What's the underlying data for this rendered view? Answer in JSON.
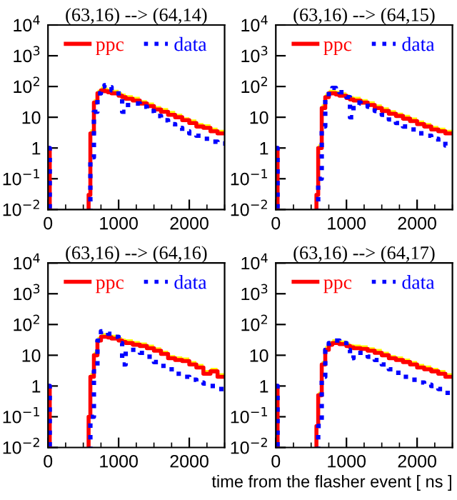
{
  "chart_data": [
    {
      "type": "step",
      "title": "(63,16) --> (64,14)",
      "x": [
        0,
        25,
        575,
        600,
        650,
        700,
        750,
        800,
        850,
        900,
        1000,
        1050,
        1100,
        1200,
        1300,
        1400,
        1500,
        1600,
        1700,
        1800,
        1900,
        2000,
        2100,
        2200,
        2300,
        2400,
        2500
      ],
      "log": "y",
      "xlim": [
        0,
        2500
      ],
      "ylim": [
        0.01,
        10000
      ],
      "xticks": [
        0,
        1000,
        2000
      ],
      "yticks": [
        {
          "value": 0.01,
          "label": "10$^{−2}$"
        },
        {
          "value": 0.1,
          "label": "10$^{−1}$"
        },
        1,
        10,
        {
          "value": 100,
          "label": "10$^{2}$"
        },
        {
          "value": 1000,
          "label": "10$^{3}$"
        },
        {
          "value": 10000,
          "label": "10$^{4}$"
        }
      ],
      "legend": "top",
      "grid": false,
      "series": [
        {
          "name": "ppc",
          "color": "#ff0000",
          "line_style": "solid",
          "values": [
            1,
            null,
            0.03,
            3,
            30,
            60,
            75,
            70,
            65,
            60,
            50,
            45,
            40,
            35,
            28,
            23,
            18,
            15,
            12,
            10,
            8,
            6.5,
            5,
            4.5,
            3.5,
            3,
            3
          ],
          "lower": [
            null,
            null,
            0.03,
            3,
            30,
            60,
            75,
            70,
            65,
            60,
            50,
            45,
            40,
            35,
            28,
            23,
            18,
            15,
            12,
            10,
            8,
            6.5,
            5,
            4.5,
            3.5,
            3,
            3
          ],
          "upper": [
            null,
            null,
            0.04,
            4,
            39,
            78,
            98,
            91,
            85,
            78,
            65,
            59,
            52,
            46,
            36,
            30,
            23,
            20,
            16,
            13,
            10,
            8.5,
            6.5,
            5.9,
            4.6,
            3.9,
            3.9
          ]
        },
        {
          "name": "data",
          "color": "#0000ff",
          "line_style": "dotted",
          "values": [
            1,
            null,
            null,
            0.5,
            15,
            60,
            100,
            110,
            95,
            75,
            50,
            15,
            25,
            28,
            22,
            16,
            11,
            8,
            6,
            4.5,
            3.5,
            3,
            2.5,
            2,
            1.6,
            1.4,
            1.4
          ]
        }
      ]
    },
    {
      "type": "step",
      "title": "(63,16) --> (64,15)",
      "x": [
        0,
        25,
        575,
        600,
        650,
        700,
        750,
        800,
        850,
        900,
        1000,
        1050,
        1100,
        1200,
        1300,
        1400,
        1500,
        1600,
        1700,
        1800,
        1900,
        2000,
        2100,
        2200,
        2300,
        2400,
        2500
      ],
      "log": "y",
      "xlim": [
        0,
        2500
      ],
      "ylim": [
        0.01,
        10000
      ],
      "xticks": [
        0,
        1000,
        2000
      ],
      "yticks": [
        {
          "value": 0.01,
          "label": "10$^{−2}$"
        },
        {
          "value": 0.1,
          "label": "10$^{−1}$"
        },
        1,
        10,
        {
          "value": 100,
          "label": "10$^{2}$"
        },
        {
          "value": 1000,
          "label": "10$^{3}$"
        },
        {
          "value": 10000,
          "label": "10$^{4}$"
        }
      ],
      "legend": "top",
      "grid": false,
      "series": [
        {
          "name": "ppc",
          "color": "#ff0000",
          "line_style": "solid",
          "values": [
            1,
            null,
            0.03,
            1,
            20,
            45,
            60,
            60,
            55,
            50,
            42,
            38,
            35,
            30,
            25,
            20,
            16,
            13,
            11,
            9,
            7.5,
            6,
            5,
            4,
            3.5,
            3,
            3
          ],
          "lower": [
            null,
            null,
            0.03,
            1,
            20,
            45,
            60,
            60,
            55,
            50,
            42,
            38,
            35,
            30,
            25,
            20,
            16,
            13,
            11,
            9,
            7.5,
            6,
            5,
            4,
            3.5,
            3,
            3
          ],
          "upper": [
            null,
            null,
            0.04,
            1.3,
            26,
            59,
            78,
            78,
            72,
            65,
            55,
            49,
            46,
            39,
            33,
            26,
            21,
            17,
            14,
            12,
            9.8,
            7.8,
            6.5,
            5.2,
            4.6,
            3.9,
            3.9
          ]
        },
        {
          "name": "data",
          "color": "#0000ff",
          "line_style": "dotted",
          "values": [
            1,
            null,
            null,
            0.1,
            5,
            40,
            80,
            90,
            80,
            65,
            45,
            10,
            30,
            28,
            22,
            16,
            12,
            8.5,
            6.5,
            5,
            4,
            3,
            2.5,
            2,
            1.6,
            1.2,
            1.2
          ]
        }
      ]
    },
    {
      "type": "step",
      "title": "(63,16) --> (64,16)",
      "x": [
        0,
        25,
        575,
        600,
        650,
        700,
        750,
        800,
        850,
        900,
        1000,
        1050,
        1100,
        1200,
        1300,
        1400,
        1500,
        1600,
        1700,
        1800,
        1900,
        2000,
        2100,
        2200,
        2300,
        2400,
        2500
      ],
      "log": "y",
      "xlim": [
        0,
        2500
      ],
      "ylim": [
        0.01,
        10000
      ],
      "xticks": [
        0,
        1000,
        2000
      ],
      "yticks": [
        {
          "value": 0.01,
          "label": "10$^{−2}$"
        },
        {
          "value": 0.1,
          "label": "10$^{−1}$"
        },
        1,
        10,
        {
          "value": 100,
          "label": "10$^{2}$"
        },
        {
          "value": 1000,
          "label": "10$^{3}$"
        },
        {
          "value": 10000,
          "label": "10$^{4}$"
        }
      ],
      "legend": "top",
      "grid": false,
      "series": [
        {
          "name": "ppc",
          "color": "#ff0000",
          "line_style": "solid",
          "values": [
            1,
            null,
            0.1,
            2,
            10,
            30,
            40,
            40,
            38,
            35,
            30,
            27,
            25,
            22,
            20,
            17,
            14,
            11,
            8,
            7,
            6.5,
            5,
            4,
            2.5,
            3,
            2,
            2
          ],
          "lower": [
            null,
            null,
            0.1,
            2,
            10,
            30,
            40,
            40,
            38,
            35,
            30,
            27,
            25,
            22,
            20,
            17,
            14,
            11,
            8,
            7,
            6.5,
            5,
            4,
            2.5,
            3,
            2,
            2
          ],
          "upper": [
            null,
            null,
            0.13,
            2.6,
            13,
            39,
            52,
            52,
            49,
            46,
            39,
            35,
            33,
            29,
            26,
            22,
            18,
            14,
            10,
            9.1,
            8.5,
            6.5,
            5.2,
            3.3,
            3.9,
            2.6,
            2.6
          ]
        },
        {
          "name": "data",
          "color": "#0000ff",
          "line_style": "dotted",
          "values": [
            1,
            null,
            null,
            0.1,
            3,
            30,
            60,
            60,
            50,
            40,
            25,
            5,
            15,
            15,
            12,
            9,
            6,
            4.5,
            3.5,
            2.5,
            2,
            1.6,
            1.3,
            1.2,
            1,
            0.8,
            0.8
          ]
        }
      ]
    },
    {
      "type": "step",
      "title": "(63,16) --> (64,17)",
      "xlabel": "time from the flasher event [ ns ]",
      "x": [
        0,
        25,
        575,
        600,
        650,
        700,
        750,
        800,
        850,
        900,
        1000,
        1050,
        1100,
        1200,
        1300,
        1400,
        1500,
        1600,
        1700,
        1800,
        1900,
        2000,
        2100,
        2200,
        2300,
        2400,
        2500
      ],
      "log": "y",
      "xlim": [
        0,
        2500
      ],
      "ylim": [
        0.01,
        10000
      ],
      "xticks": [
        0,
        1000,
        2000
      ],
      "yticks": [
        {
          "value": 0.01,
          "label": "10$^{−2}$"
        },
        {
          "value": 0.1,
          "label": "10$^{−1}$"
        },
        1,
        10,
        {
          "value": 100,
          "label": "10$^{2}$"
        },
        {
          "value": 1000,
          "label": "10$^{3}$"
        },
        {
          "value": 10000,
          "label": "10$^{4}$"
        }
      ],
      "legend": "top",
      "grid": false,
      "series": [
        {
          "name": "ppc",
          "color": "#ff0000",
          "line_style": "solid",
          "values": [
            1,
            null,
            0.05,
            0.5,
            5,
            15,
            22,
            25,
            25,
            23,
            20,
            18,
            17,
            16,
            14,
            12,
            10,
            8,
            7,
            6,
            5,
            4,
            3.5,
            3,
            2.5,
            2,
            2
          ],
          "lower": [
            null,
            null,
            0.05,
            0.5,
            5,
            15,
            22,
            25,
            25,
            23,
            20,
            18,
            17,
            16,
            14,
            12,
            10,
            8,
            7,
            6,
            5,
            4,
            3.5,
            3,
            2.5,
            2,
            2
          ],
          "upper": [
            null,
            null,
            0.07,
            0.65,
            6.5,
            20,
            29,
            33,
            33,
            30,
            26,
            23,
            22,
            21,
            18,
            16,
            13,
            10,
            9.1,
            7.8,
            6.5,
            5.2,
            4.6,
            3.9,
            3.3,
            2.6,
            2.6
          ]
        },
        {
          "name": "data",
          "color": "#0000ff",
          "line_style": "dotted",
          "values": [
            1,
            null,
            null,
            0.05,
            2,
            15,
            25,
            30,
            30,
            25,
            15,
            8,
            12,
            12,
            9,
            7,
            5,
            3.5,
            2.7,
            2,
            1.6,
            1.3,
            1.1,
            1,
            0.8,
            0.6,
            0.6
          ]
        }
      ]
    }
  ]
}
